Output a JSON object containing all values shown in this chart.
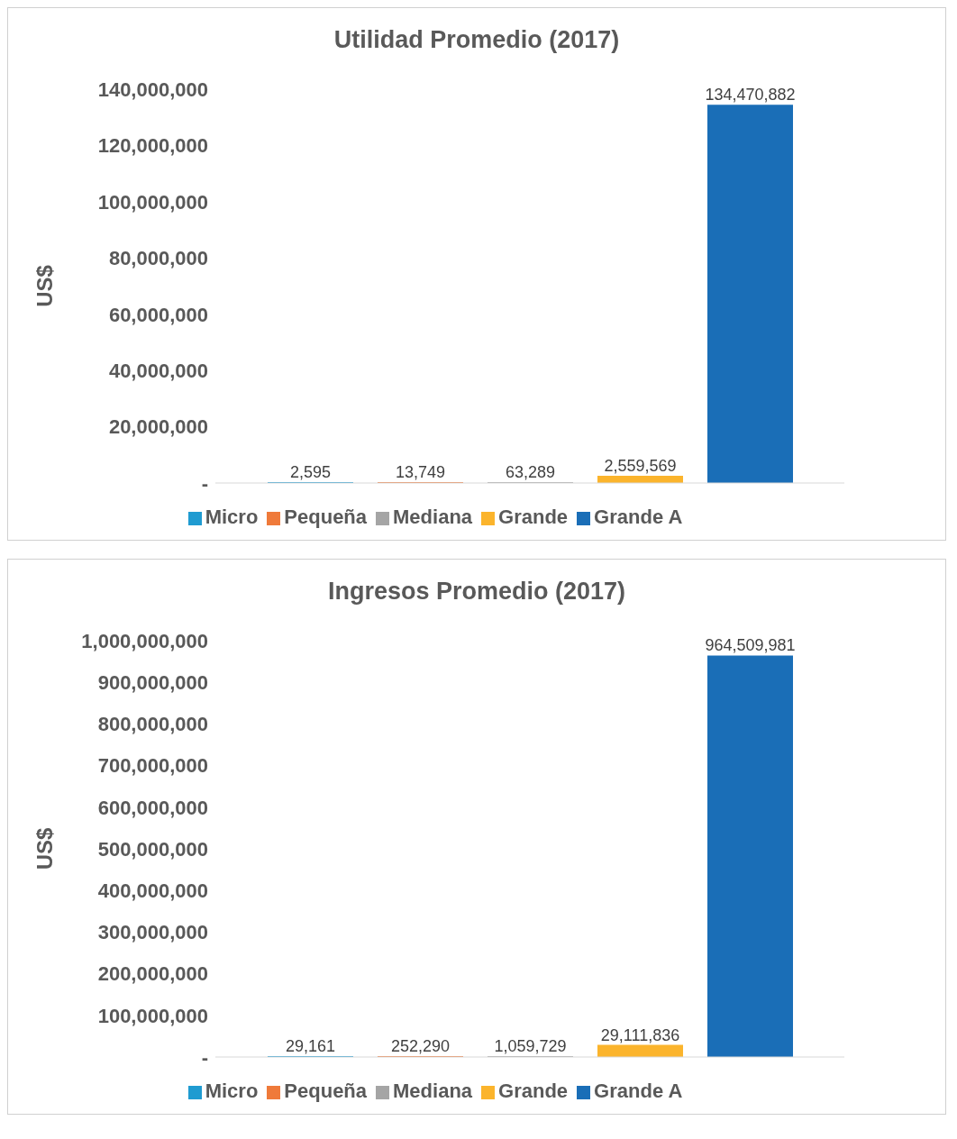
{
  "chart_data": [
    {
      "type": "bar",
      "title": "Utilidad Promedio (2017)",
      "ylabel": "US$",
      "categories": [
        null
      ],
      "series": [
        {
          "name": "Micro",
          "color": "#1f9bd1",
          "values": [
            2595
          ],
          "value_labels": [
            "2,595"
          ]
        },
        {
          "name": "Pequeña",
          "color": "#ef7a3a",
          "values": [
            13749
          ],
          "value_labels": [
            "13,749"
          ]
        },
        {
          "name": "Mediana",
          "color": "#a5a5a5",
          "values": [
            63289
          ],
          "value_labels": [
            "63,289"
          ]
        },
        {
          "name": "Grande",
          "color": "#fbb42c",
          "values": [
            2559569
          ],
          "value_labels": [
            "2,559,569"
          ]
        },
        {
          "name": "Grande A",
          "color": "#1a6eb7",
          "values": [
            134470882
          ],
          "value_labels": [
            "134,470,882"
          ]
        }
      ],
      "ylim": [
        0,
        140000000
      ],
      "yticks": [
        {
          "value": 0,
          "label": "-"
        },
        {
          "value": 20000000,
          "label": "20,000,000"
        },
        {
          "value": 40000000,
          "label": "40,000,000"
        },
        {
          "value": 60000000,
          "label": "60,000,000"
        },
        {
          "value": 80000000,
          "label": "80,000,000"
        },
        {
          "value": 100000000,
          "label": "100,000,000"
        },
        {
          "value": 120000000,
          "label": "120,000,000"
        },
        {
          "value": 140000000,
          "label": "140,000,000"
        }
      ],
      "legend": "bottom",
      "tick_labels": "y"
    },
    {
      "type": "bar",
      "title": "Ingresos Promedio (2017)",
      "ylabel": "US$",
      "categories": [
        null
      ],
      "series": [
        {
          "name": "Micro",
          "color": "#1f9bd1",
          "values": [
            29161
          ],
          "value_labels": [
            "29,161"
          ]
        },
        {
          "name": "Pequeña",
          "color": "#ef7a3a",
          "values": [
            252290
          ],
          "value_labels": [
            "252,290"
          ]
        },
        {
          "name": "Mediana",
          "color": "#a5a5a5",
          "values": [
            1059729
          ],
          "value_labels": [
            "1,059,729"
          ]
        },
        {
          "name": "Grande",
          "color": "#fbb42c",
          "values": [
            29111836
          ],
          "value_labels": [
            "29,111,836"
          ]
        },
        {
          "name": "Grande A",
          "color": "#1a6eb7",
          "values": [
            964509981
          ],
          "value_labels": [
            "964,509,981"
          ]
        }
      ],
      "ylim": [
        0,
        1000000000
      ],
      "yticks": [
        {
          "value": 0,
          "label": "-"
        },
        {
          "value": 100000000,
          "label": "100,000,000"
        },
        {
          "value": 200000000,
          "label": "200,000,000"
        },
        {
          "value": 300000000,
          "label": "300,000,000"
        },
        {
          "value": 400000000,
          "label": "400,000,000"
        },
        {
          "value": 500000000,
          "label": "500,000,000"
        },
        {
          "value": 600000000,
          "label": "600,000,000"
        },
        {
          "value": 700000000,
          "label": "700,000,000"
        },
        {
          "value": 800000000,
          "label": "800,000,000"
        },
        {
          "value": 900000000,
          "label": "900,000,000"
        },
        {
          "value": 1000000000,
          "label": "1,000,000,000"
        }
      ],
      "legend": "bottom",
      "tick_labels": "y"
    }
  ]
}
